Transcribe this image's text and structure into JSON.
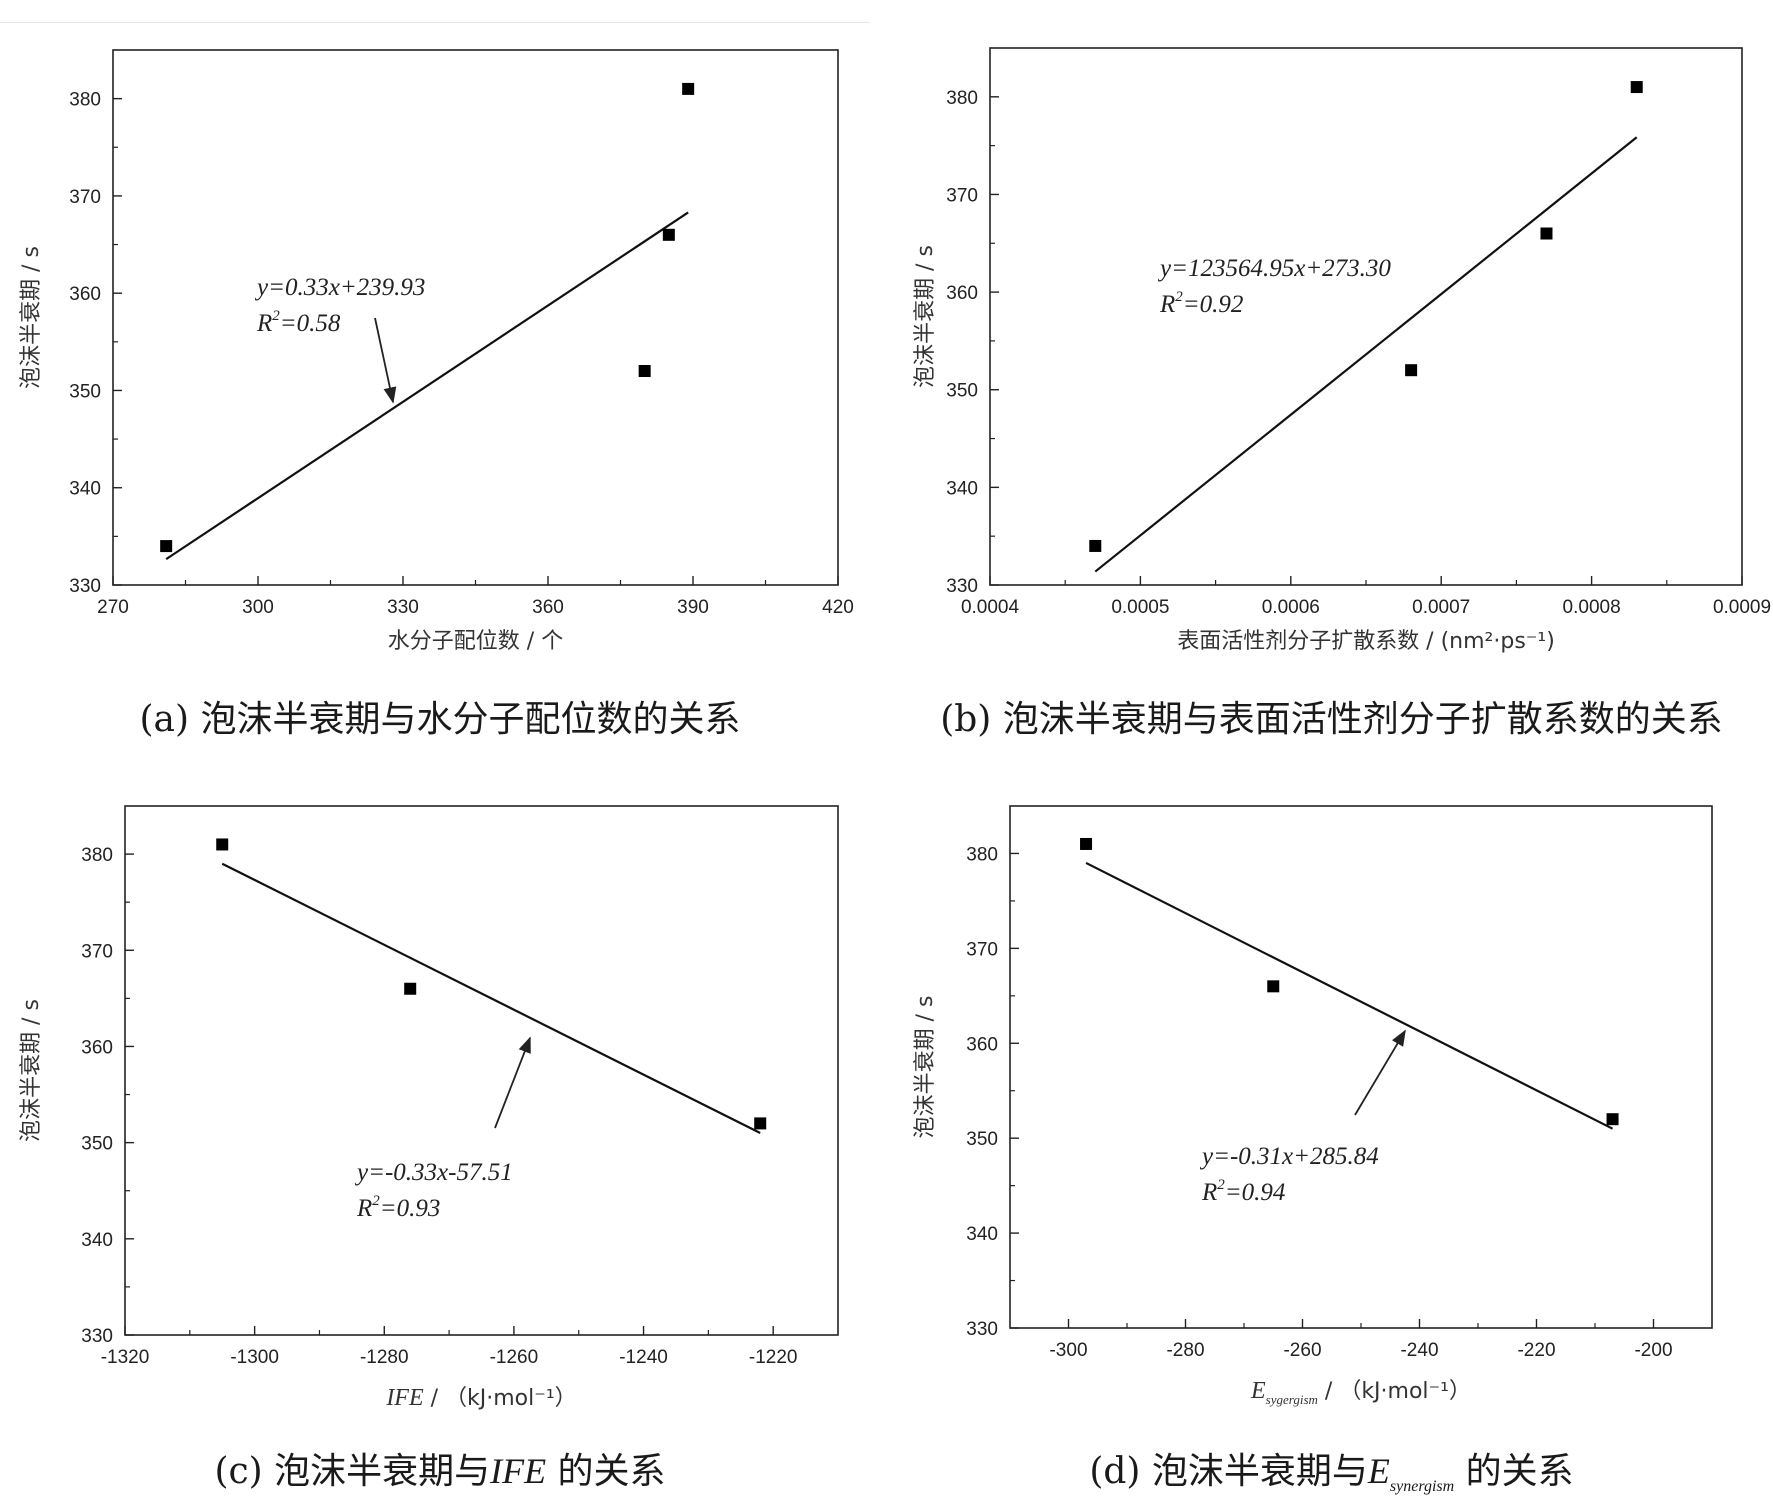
{
  "captions": {
    "a": "(a) 泡沫半衰期与水分子配位数的关系",
    "b": "(b) 泡沫半衰期与表面活性剂分子扩散系数的关系",
    "c_prefix": "(c) 泡沫半衰期与",
    "c_italic": "IFE",
    "c_suffix": " 的关系",
    "d_prefix": "(d) 泡沫半衰期与",
    "d_italic": "E",
    "d_sub": "synergism",
    "d_suffix": " 的关系"
  },
  "chart_data": [
    {
      "id": "a",
      "type": "scatter",
      "xlabel": "水分子配位数 / 个",
      "ylabel": "泡沫半衰期 / s",
      "xlim": [
        270,
        420
      ],
      "ylim": [
        330,
        385
      ],
      "xticks": [
        270,
        300,
        330,
        360,
        390,
        420
      ],
      "yticks": [
        330,
        340,
        350,
        360,
        370,
        380
      ],
      "points": [
        [
          281,
          334
        ],
        [
          380,
          352
        ],
        [
          385,
          366
        ],
        [
          389,
          381
        ]
      ],
      "fit_line": {
        "slope": 0.33,
        "intercept": 239.93,
        "x_range": [
          281,
          389
        ]
      },
      "equation": "y=0.33x+239.93",
      "r2_prefix": "R",
      "r2_value": "=0.58"
    },
    {
      "id": "b",
      "type": "scatter",
      "xlabel": "表面活性剂分子扩散系数 / (nm²·ps⁻¹)",
      "ylabel": "泡沫半衰期 / s",
      "xlim": [
        0.0004,
        0.0009
      ],
      "ylim": [
        330,
        385
      ],
      "xticks": [
        0.0004,
        0.0005,
        0.0006,
        0.0007,
        0.0008,
        0.0009
      ],
      "xtick_labels": [
        "0.0004",
        "0.0005",
        "0.0006",
        "0.0007",
        "0.0008",
        "0.0009"
      ],
      "yticks": [
        330,
        340,
        350,
        360,
        370,
        380
      ],
      "points": [
        [
          0.00047,
          334
        ],
        [
          0.00068,
          352
        ],
        [
          0.00077,
          366
        ],
        [
          0.00083,
          381
        ]
      ],
      "fit_line": {
        "slope": 123564.95,
        "intercept": 273.3,
        "x_range": [
          0.00047,
          0.00083
        ]
      },
      "equation": "y=123564.95x+273.30",
      "r2_prefix": "R",
      "r2_value": "=0.92"
    },
    {
      "id": "c",
      "type": "scatter",
      "xlabel": "IFE / （kJ·mol⁻¹）",
      "ylabel": "泡沫半衰期 / s",
      "xlim": [
        -1320,
        -1210
      ],
      "ylim": [
        330,
        385
      ],
      "xticks": [
        -1320,
        -1300,
        -1280,
        -1260,
        -1240,
        -1220
      ],
      "yticks": [
        330,
        340,
        350,
        360,
        370,
        380
      ],
      "points": [
        [
          -1305,
          381
        ],
        [
          -1276,
          366
        ],
        [
          -1222,
          352
        ]
      ],
      "fit_line": {
        "slope": -0.33,
        "intercept": -57.51,
        "x_range": [
          -1305,
          -1222
        ]
      },
      "equation": "y=-0.33x-57.51",
      "r2_prefix": "R",
      "r2_value": "=0.93"
    },
    {
      "id": "d",
      "type": "scatter",
      "xlabel": "E_sygergism / （kJ·mol⁻¹）",
      "xlabel_main": "E",
      "xlabel_sub": "sygergism",
      "xlabel_unit": " / （kJ·mol⁻¹）",
      "ylabel": "泡沫半衰期 / s",
      "xlim": [
        -310,
        -190
      ],
      "ylim": [
        330,
        385
      ],
      "xticks": [
        -300,
        -280,
        -260,
        -240,
        -220,
        -200
      ],
      "yticks": [
        330,
        340,
        350,
        360,
        370,
        380
      ],
      "points": [
        [
          -297,
          381
        ],
        [
          -265,
          366
        ],
        [
          -207,
          352
        ]
      ],
      "fit_line": {
        "slope": -0.31,
        "intercept": 285.84,
        "x_range": [
          -297,
          -207
        ]
      },
      "equation": "y=-0.31x+285.84",
      "r2_prefix": "R",
      "r2_value": "=0.94"
    }
  ]
}
